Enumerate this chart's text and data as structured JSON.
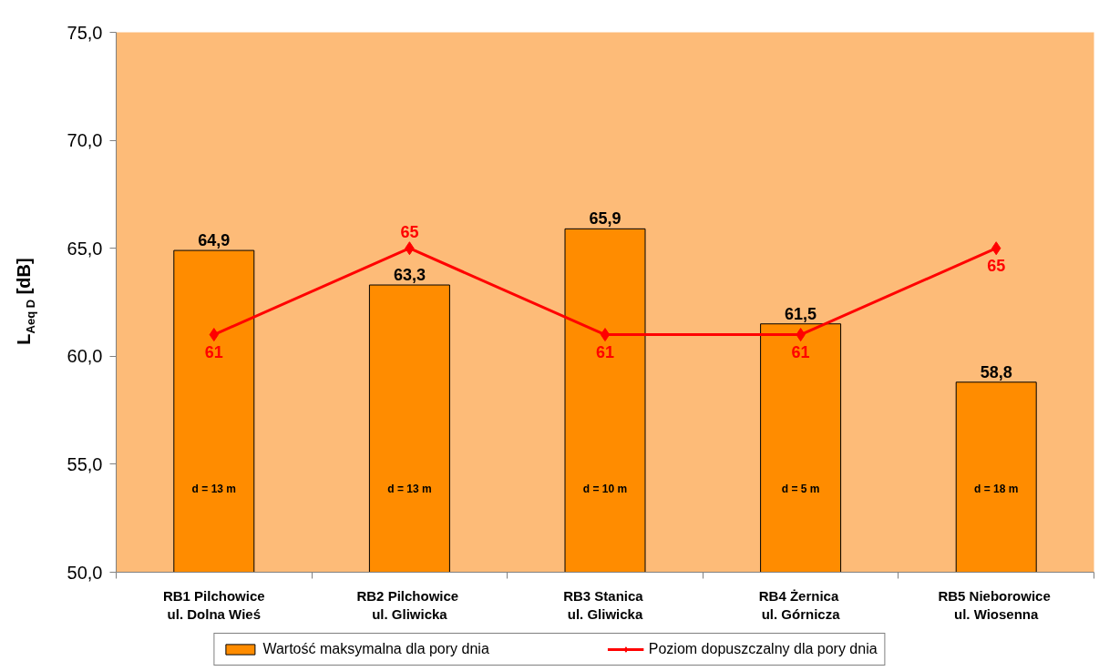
{
  "chart_data": {
    "type": "bar",
    "ylabel": "L$_{Aeq D}$ [dB]",
    "categories": [
      "RB1 Pilchowice\nul. Dolna Wieś",
      "RB2  Pilchowice\nul. Gliwicka",
      "RB3  Stanica\nul. Gliwicka",
      "RB4  Żernica\nul. Górnicza",
      "RB5  Nieborowice\nul. Wiosenna"
    ],
    "series": [
      {
        "name": "Wartość maksymalna dla pory dnia",
        "color": "#ff8c00",
        "values": [
          64.9,
          63.3,
          65.9,
          61.5,
          58.8
        ],
        "value_labels": [
          "64,9",
          "63,3",
          "65,9",
          "61,5",
          "58,8"
        ]
      },
      {
        "name": "Poziom dopuszczalny dla pory dnia",
        "type": "line",
        "color": "#ff0000",
        "values": [
          61,
          65,
          61,
          61,
          65
        ],
        "value_labels": [
          "61",
          "65",
          "61",
          "61",
          "65"
        ]
      }
    ],
    "ylim": [
      50,
      75
    ],
    "yticks": [
      {
        "value": 50,
        "label": "50,0"
      },
      {
        "value": 55,
        "label": "55,0"
      },
      {
        "value": 60,
        "label": "60,0"
      },
      {
        "value": 65,
        "label": "65,0"
      },
      {
        "value": 70,
        "label": "70,0"
      },
      {
        "value": 75,
        "label": "75,0"
      }
    ],
    "annotations": [
      "d = 13 m",
      "d = 13 m",
      "d = 10 m",
      "d = 5 m",
      "d = 18 m"
    ],
    "legend": "bottom",
    "marker": "diamond",
    "grid": false
  }
}
